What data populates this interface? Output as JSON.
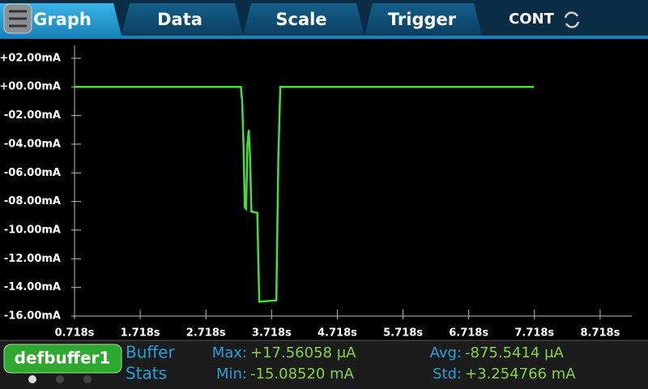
{
  "tabs": [
    "Graph",
    "Data",
    "Scale",
    "Trigger"
  ],
  "mode": "CONT",
  "chart_data": {
    "type": "line",
    "x": [
      0.718,
      3.25,
      3.27,
      3.29,
      3.31,
      3.33,
      3.35,
      3.37,
      3.39,
      3.41,
      3.5,
      3.53,
      3.79,
      3.82,
      3.85,
      7.71
    ],
    "series": [
      {
        "color": "#45dc3c",
        "values": [
          0,
          0,
          -1,
          -4,
          -8.4,
          -8.5,
          -4,
          -3,
          -5,
          -8.7,
          -8.8,
          -15,
          -14.9,
          -5,
          0,
          0
        ]
      }
    ],
    "xlim": [
      0.718,
      9.2
    ],
    "ylim": [
      -16,
      2.9
    ],
    "xticks": [
      {
        "value": 0.718,
        "label": "0.718s"
      },
      {
        "value": 1.718,
        "label": "1.718s"
      },
      {
        "value": 2.718,
        "label": "2.718s"
      },
      {
        "value": 3.718,
        "label": "3.718s"
      },
      {
        "value": 4.718,
        "label": "4.718s"
      },
      {
        "value": 5.718,
        "label": "5.718s"
      },
      {
        "value": 6.718,
        "label": "6.718s"
      },
      {
        "value": 7.718,
        "label": "7.718s"
      },
      {
        "value": 8.718,
        "label": "8.718s"
      }
    ],
    "yticks": [
      {
        "value": 2,
        "label": "+02.00mA"
      },
      {
        "value": 0,
        "label": "+00.00mA"
      },
      {
        "value": -2,
        "label": "-02.00mA"
      },
      {
        "value": -4,
        "label": "-04.00mA"
      },
      {
        "value": -6,
        "label": "-06.00mA"
      },
      {
        "value": -8,
        "label": "-08.00mA"
      },
      {
        "value": -10,
        "label": "-10.00mA"
      },
      {
        "value": -12,
        "label": "-12.00mA"
      },
      {
        "value": -14,
        "label": "-14.00mA"
      },
      {
        "value": -16,
        "label": "-16.00mA"
      }
    ],
    "grid": false
  },
  "buffer": {
    "name": "defbuffer1",
    "heading": [
      "Buffer",
      "Stats"
    ],
    "stats": [
      {
        "label": "Max:",
        "value": "+17.56058 μA"
      },
      {
        "label": "Min:",
        "value": "-15.08520 mA"
      },
      {
        "label": "Avg:",
        "value": "-875.5414 μA"
      },
      {
        "label": "Std:",
        "value": "+3.254766 mA"
      }
    ]
  }
}
